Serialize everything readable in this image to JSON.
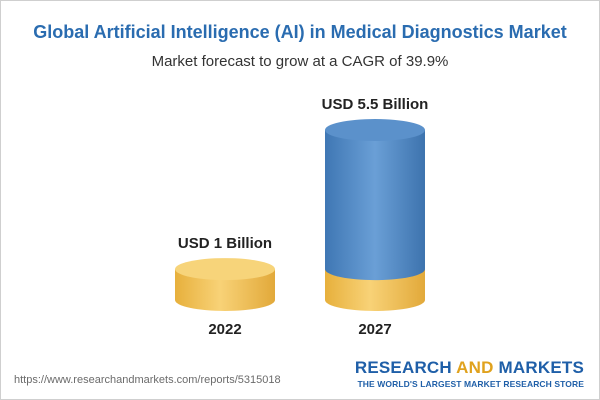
{
  "header": {
    "title": "Global Artificial Intelligence (AI) in Medical Diagnostics Market",
    "subtitle": "Market forecast to grow at a CAGR of 39.9%"
  },
  "chart_data": {
    "type": "bar",
    "categories": [
      "2022",
      "2027"
    ],
    "values": [
      1,
      5.5
    ],
    "data_labels": [
      "USD 1 Billion",
      "USD 5.5 Billion"
    ],
    "unit": "USD Billion",
    "ylim": [
      0,
      5.5
    ],
    "grid": false,
    "legend": "none"
  },
  "colors": {
    "title": "#2a6cb0",
    "base_bar": "#f2c45a",
    "growth_bar": "#4f86c1",
    "brand_blue": "#1f5fa8",
    "brand_gold": "#e0a21e"
  },
  "footer": {
    "url": "https://www.researchandmarkets.com/reports/5315018",
    "brand_part1": "RESEARCH ",
    "brand_part2": "AND",
    "brand_part3": " MARKETS",
    "tagline": "THE WORLD'S LARGEST MARKET RESEARCH STORE"
  }
}
